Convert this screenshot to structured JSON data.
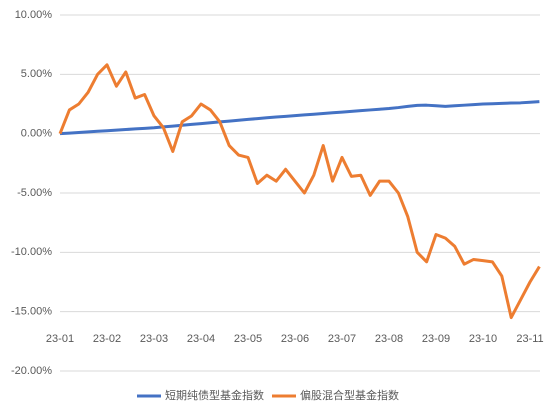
{
  "chart_data": {
    "type": "line",
    "categories": [
      "23-01",
      null,
      null,
      null,
      null,
      "23-02",
      null,
      null,
      null,
      null,
      "23-03",
      null,
      null,
      null,
      null,
      "23-04",
      null,
      null,
      null,
      null,
      "23-05",
      null,
      null,
      null,
      null,
      "23-06",
      null,
      null,
      null,
      null,
      "23-07",
      null,
      null,
      null,
      null,
      "23-08",
      null,
      null,
      null,
      null,
      "23-09",
      null,
      null,
      null,
      null,
      "23-10",
      null,
      null,
      null,
      null,
      "23-11",
      null
    ],
    "series": [
      {
        "name": "短期纯债型基金指数",
        "color": "#4472c4",
        "values": [
          0,
          0.05,
          0.1,
          0.15,
          0.2,
          0.25,
          0.3,
          0.35,
          0.4,
          0.45,
          0.5,
          0.57,
          0.64,
          0.71,
          0.78,
          0.85,
          0.92,
          0.99,
          1.06,
          1.13,
          1.2,
          1.27,
          1.34,
          1.4,
          1.46,
          1.52,
          1.58,
          1.64,
          1.7,
          1.76,
          1.82,
          1.88,
          1.94,
          2.0,
          2.06,
          2.12,
          2.2,
          2.3,
          2.38,
          2.4,
          2.35,
          2.3,
          2.35,
          2.4,
          2.45,
          2.5,
          2.52,
          2.55,
          2.58,
          2.6,
          2.65,
          2.7
        ]
      },
      {
        "name": "偏股混合型基金指数",
        "color": "#ed7d31",
        "values": [
          0,
          2,
          2.5,
          3.5,
          5,
          5.8,
          4,
          5.2,
          3,
          3.3,
          1.5,
          0.5,
          -1.5,
          1,
          1.5,
          2.5,
          2,
          1,
          -1,
          -1.8,
          -2,
          -4.2,
          -3.5,
          -4,
          -3,
          -4,
          -5,
          -3.5,
          -1,
          -4,
          -2,
          -3.6,
          -3.5,
          -5.2,
          -4,
          -4,
          -5,
          -7,
          -10,
          -10.8,
          -8.5,
          -8.8,
          -9.5,
          -11,
          -10.6,
          -10.7,
          -10.8,
          -12,
          -15.5,
          -14,
          -12.5,
          -11.2
        ]
      }
    ],
    "ylim": [
      -20,
      10
    ],
    "yticks": [
      {
        "value": -20,
        "label": "-20.00%"
      },
      {
        "value": -15,
        "label": "-15.00%"
      },
      {
        "value": -10,
        "label": "-10.00%"
      },
      {
        "value": -5,
        "label": "-5.00%"
      },
      {
        "value": 0,
        "label": "0.00%"
      },
      {
        "value": 5,
        "label": "5.00%"
      },
      {
        "value": 10,
        "label": "10.00%"
      }
    ],
    "grid": true
  }
}
